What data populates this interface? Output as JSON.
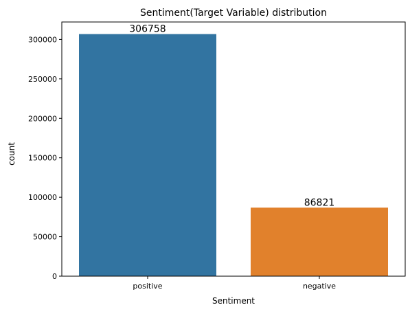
{
  "chart_data": {
    "type": "bar",
    "title": "Sentiment(Target Variable) distribution",
    "xlabel": "Sentiment",
    "ylabel": "count",
    "categories": [
      "positive",
      "negative"
    ],
    "values": [
      306758,
      86821
    ],
    "data_labels": [
      "306758",
      "86821"
    ],
    "ylim": [
      0,
      322096
    ],
    "yticks": [
      0,
      50000,
      100000,
      150000,
      200000,
      250000,
      300000
    ],
    "ytick_labels": [
      "0",
      "50000",
      "100000",
      "150000",
      "200000",
      "250000",
      "300000"
    ],
    "colors": [
      "#3274a1",
      "#e1812c"
    ],
    "grid": false,
    "legend": "none"
  }
}
